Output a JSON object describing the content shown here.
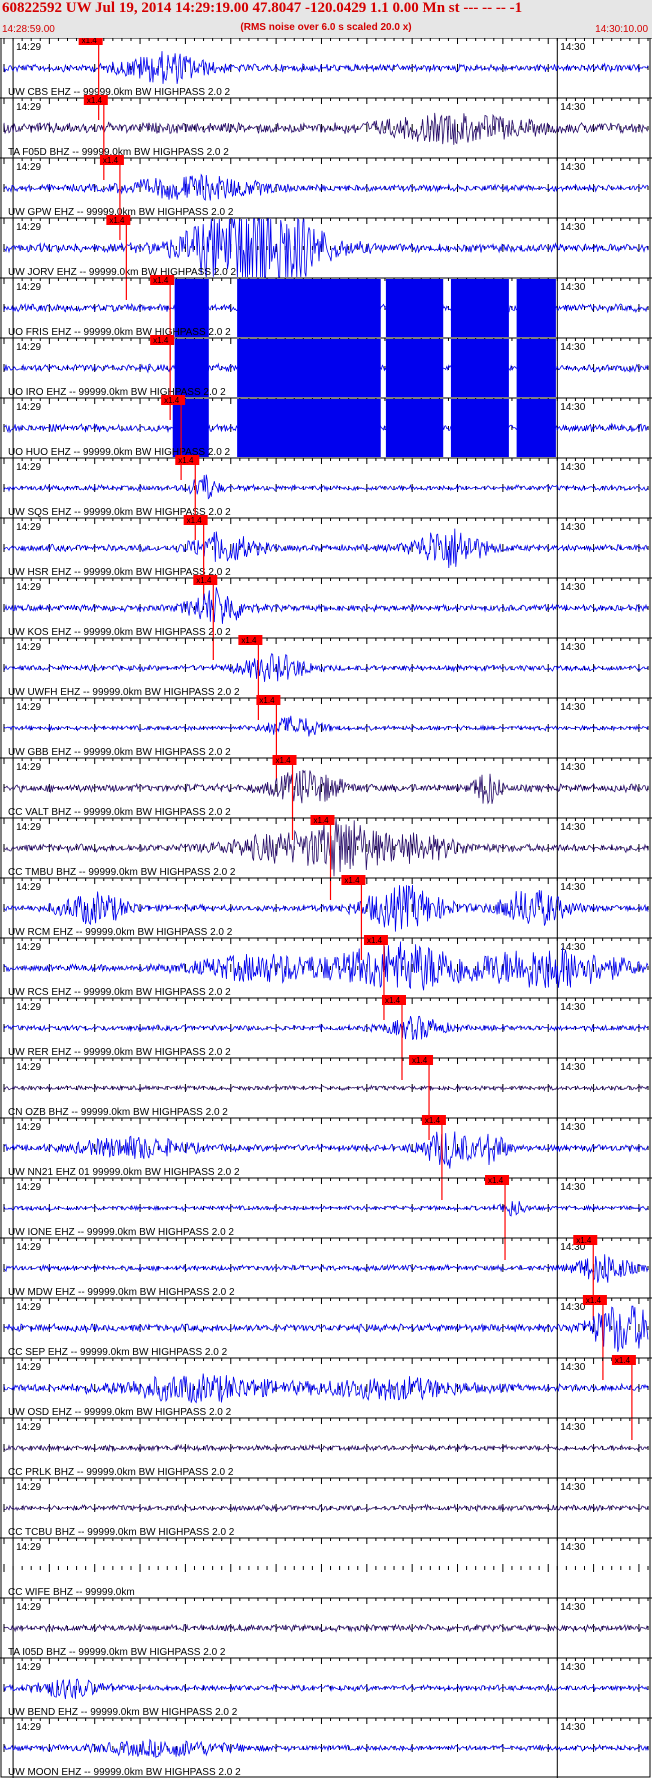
{
  "header": {
    "title": "60822592 UW Jul 19, 2014 14:29:19.00   47.8047 -120.0429  1.1 0.00 Mn st --- -- --  -1",
    "subtitle": "(RMS noise over 6.0 s scaled 20.0 x)",
    "start_time": "14:28:59.00",
    "end_time": "14:30:10.00"
  },
  "time_labels": [
    "14:29",
    "14:30"
  ],
  "pick_label": "x1.4",
  "colors": {
    "header_text": "#d40000",
    "trace": "#0000ee",
    "trace_dark": "#2a0f6b",
    "pick": "#ff0000",
    "grid": "#000000"
  },
  "traces": [
    {
      "label": "UW CBS EHZ -- 99999.0km BW  HIGHPASS  2.0  2",
      "pick": 0.147,
      "color": "blue",
      "amp": 0.35,
      "events": [
        [
          0.25,
          0.06,
          1.6
        ]
      ]
    },
    {
      "label": "TA F05D BHZ -- 99999.0km BW  HIGHPASS  2.0  2",
      "pick": 0.155,
      "color": "dark",
      "amp": 0.5,
      "events": [
        [
          0.7,
          0.1,
          1.3
        ]
      ]
    },
    {
      "label": "UW GPW EHZ -- 99999.0km BW  HIGHPASS  2.0  2",
      "pick": 0.18,
      "color": "blue",
      "amp": 0.3,
      "events": [
        [
          0.3,
          0.1,
          1.2
        ]
      ]
    },
    {
      "label": "UW JORV EHZ -- 99999.0km BW  HIGHPASS  2.0  2",
      "pick": 0.19,
      "color": "blue",
      "amp": 0.4,
      "events": [
        [
          0.39,
          0.09,
          6.5
        ]
      ]
    },
    {
      "label": "UO FRIS EHZ -- 99999.0km BW  HIGHPASS  2.0  2",
      "pick": 0.258,
      "color": "blue",
      "amp": 0.35,
      "saturate": [
        [
          0.265,
          0.318
        ],
        [
          0.362,
          0.585
        ],
        [
          0.593,
          0.682
        ],
        [
          0.694,
          0.784
        ],
        [
          0.796,
          0.857
        ]
      ]
    },
    {
      "label": "UO IRO EHZ -- 99999.0km BW  HIGHPASS  2.0  2",
      "pick": 0.258,
      "color": "blue",
      "amp": 0.35,
      "saturate": [
        [
          0.265,
          0.318
        ],
        [
          0.362,
          0.585
        ],
        [
          0.593,
          0.682
        ],
        [
          0.694,
          0.784
        ],
        [
          0.796,
          0.857
        ]
      ]
    },
    {
      "label": "UO HUO EHZ -- 99999.0km BW  HIGHPASS  2.0  2",
      "pick": 0.275,
      "color": "blue",
      "amp": 0.35,
      "saturate": [
        [
          0.262,
          0.318
        ],
        [
          0.362,
          0.585
        ],
        [
          0.593,
          0.682
        ],
        [
          0.694,
          0.784
        ],
        [
          0.796,
          0.857
        ]
      ]
    },
    {
      "label": "UW SQS EHZ -- 99999.0km BW  HIGHPASS  2.0  2",
      "pick": 0.297,
      "color": "blue",
      "amp": 0.25,
      "events": [
        [
          0.31,
          0.02,
          1.5
        ]
      ]
    },
    {
      "label": "UW HSR EHZ -- 99999.0km BW  HIGHPASS  2.0  2",
      "pick": 0.31,
      "color": "blue",
      "amp": 0.3,
      "events": [
        [
          0.69,
          0.05,
          2.2
        ],
        [
          0.34,
          0.05,
          1.5
        ]
      ]
    },
    {
      "label": "UW KOS EHZ -- 99999.0km BW  HIGHPASS  2.0  2",
      "pick": 0.325,
      "color": "blue",
      "amp": 0.3,
      "events": [
        [
          0.33,
          0.04,
          2.0
        ]
      ]
    },
    {
      "label": "UW UWFH EHZ -- 99999.0km BW  HIGHPASS  2.0  2",
      "pick": 0.395,
      "color": "blue",
      "amp": 0.25,
      "events": [
        [
          0.42,
          0.05,
          1.4
        ]
      ]
    },
    {
      "label": "UW GBB EHZ -- 99999.0km BW  HIGHPASS  2.0  2",
      "pick": 0.423,
      "color": "blue",
      "amp": 0.2,
      "events": [
        [
          0.45,
          0.04,
          1.2
        ]
      ]
    },
    {
      "label": "CC VALT BHZ -- 99999.0km BW  HIGHPASS  2.0  2",
      "pick": 0.448,
      "color": "dark",
      "amp": 0.35,
      "events": [
        [
          0.47,
          0.05,
          1.8
        ],
        [
          0.75,
          0.02,
          1.8
        ]
      ]
    },
    {
      "label": "CC TMBU BHZ -- 99999.0km BW  HIGHPASS  2.0  2",
      "pick": 0.507,
      "color": "dark",
      "amp": 0.35,
      "events": [
        [
          0.45,
          0.1,
          1.5
        ],
        [
          0.53,
          0.04,
          2.2
        ],
        [
          0.63,
          0.08,
          1.3
        ]
      ]
    },
    {
      "label": "UW RCM EHZ -- 99999.0km BW  HIGHPASS  2.0  2",
      "pick": 0.555,
      "color": "blue",
      "amp": 0.3,
      "events": [
        [
          0.14,
          0.05,
          1.6
        ],
        [
          0.62,
          0.06,
          2.3
        ],
        [
          0.82,
          0.05,
          2.0
        ]
      ]
    },
    {
      "label": "UW RCS EHZ -- 99999.0km BW  HIGHPASS  2.0  2",
      "pick": 0.59,
      "color": "blue",
      "amp": 0.3,
      "events": [
        [
          0.62,
          0.1,
          2.6
        ],
        [
          0.85,
          0.11,
          2.2
        ],
        [
          0.4,
          0.1,
          1.4
        ]
      ]
    },
    {
      "label": "UW RER EHZ -- 99999.0km BW  HIGHPASS  2.0  2",
      "pick": 0.618,
      "color": "blue",
      "amp": 0.25,
      "events": [
        [
          0.64,
          0.04,
          1.2
        ]
      ]
    },
    {
      "label": "CN OZB BHZ -- 99999.0km BW  HIGHPASS  2.0  2",
      "pick": 0.66,
      "color": "dark",
      "amp": 0.2,
      "events": []
    },
    {
      "label": "UW NN21 EHZ 01 99999.0km BW  HIGHPASS  2.0  2",
      "pick": 0.68,
      "color": "blue",
      "amp": 0.3,
      "events": [
        [
          0.69,
          0.04,
          2.0
        ],
        [
          0.76,
          0.02,
          1.6
        ],
        [
          0.2,
          0.08,
          1.1
        ]
      ]
    },
    {
      "label": "UW IONE EHZ -- 99999.0km BW  HIGHPASS  2.0  2",
      "pick": 0.778,
      "color": "blue",
      "amp": 0.2,
      "events": [
        [
          0.79,
          0.02,
          0.8
        ]
      ]
    },
    {
      "label": "UW MDW EHZ -- 99999.0km BW  HIGHPASS  2.0  2",
      "pick": 0.915,
      "color": "blue",
      "amp": 0.25,
      "events": [
        [
          0.93,
          0.04,
          1.6
        ]
      ]
    },
    {
      "label": "CC SEP EHZ -- 99999.0km BW  HIGHPASS  2.0  2",
      "pick": 0.93,
      "color": "blue",
      "amp": 0.35,
      "events": [
        [
          0.96,
          0.05,
          2.6
        ]
      ]
    },
    {
      "label": "UW OSD EHZ -- 99999.0km BW  HIGHPASS  2.0  2",
      "pick": 0.975,
      "color": "blue",
      "amp": 0.35,
      "events": [
        [
          0.3,
          0.12,
          1.3
        ],
        [
          0.6,
          0.1,
          1.1
        ]
      ]
    },
    {
      "label": "CC PRLK BHZ -- 99999.0km BW  HIGHPASS  2.0  2",
      "pick": null,
      "color": "dark",
      "amp": 0.25,
      "events": []
    },
    {
      "label": "CC TCBU BHZ -- 99999.0km BW  HIGHPASS  2.0  2",
      "pick": null,
      "color": "dark",
      "amp": 0.25,
      "events": []
    },
    {
      "label": "CC WIFE BHZ -- 99999.0km",
      "pick": null,
      "color": "none",
      "amp": 0,
      "events": []
    },
    {
      "label": "TA I05D BHZ -- 99999.0km BW  HIGHPASS  2.0  2",
      "pick": null,
      "color": "dark",
      "amp": 0.3,
      "events": []
    },
    {
      "label": "UW BEND EHZ -- 99999.0km BW  HIGHPASS  2.0  2",
      "pick": null,
      "color": "blue",
      "amp": 0.25,
      "events": [
        [
          0.1,
          0.05,
          1.0
        ]
      ]
    },
    {
      "label": "UW MOON EHZ -- 99999.0km BW  HIGHPASS  2.0  2",
      "pick": null,
      "color": "blue",
      "amp": 0.25,
      "events": [
        [
          0.25,
          0.1,
          0.8
        ]
      ]
    }
  ]
}
